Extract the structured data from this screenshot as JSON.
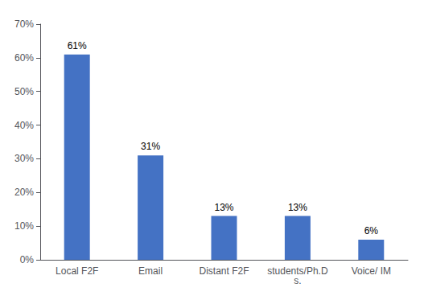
{
  "chart_data": {
    "type": "bar",
    "categories": [
      "Local F2F",
      "Email",
      "Distant F2F",
      "students/Ph.D\ns.",
      "Voice/ IM"
    ],
    "values": [
      61,
      31,
      13,
      13,
      6
    ],
    "value_labels": [
      "61%",
      "31%",
      "13%",
      "13%",
      "6%"
    ],
    "color": "#4472c4",
    "ylim": [
      0,
      70
    ],
    "yticks": [
      {
        "value": 0,
        "label": "0%"
      },
      {
        "value": 10,
        "label": "10%"
      },
      {
        "value": 20,
        "label": "20%"
      },
      {
        "value": 30,
        "label": "30%"
      },
      {
        "value": 40,
        "label": "40%"
      },
      {
        "value": 50,
        "label": "50%"
      },
      {
        "value": 60,
        "label": "60%"
      },
      {
        "value": 70,
        "label": "70%"
      }
    ],
    "grid": false,
    "data_labels": true
  }
}
